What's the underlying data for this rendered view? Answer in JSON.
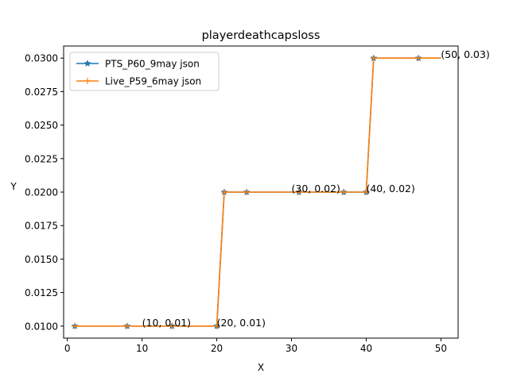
{
  "chart_data": {
    "type": "line",
    "title": "playerdeathcapsloss",
    "xlabel": "X",
    "ylabel": "Y",
    "xlim": [
      -0.5,
      52.3
    ],
    "ylim": [
      0.0091,
      0.0309
    ],
    "xticks": [
      0,
      10,
      20,
      30,
      40,
      50
    ],
    "yticks": [
      0.01,
      0.0125,
      0.015,
      0.0175,
      0.02,
      0.0225,
      0.025,
      0.0275,
      0.03
    ],
    "x_tick_labels": [
      "0",
      "10",
      "20",
      "30",
      "40",
      "50"
    ],
    "y_tick_labels": [
      "0.0100",
      "0.0125",
      "0.0150",
      "0.0175",
      "0.0200",
      "0.0225",
      "0.0250",
      "0.0275",
      "0.0300"
    ],
    "grid": false,
    "legend_position": "top-left",
    "series": [
      {
        "name": "PTS_P60_9may json",
        "color": "#1f77b4",
        "marker": "star",
        "x": [
          1,
          20,
          21,
          40,
          41,
          50
        ],
        "y": [
          0.01,
          0.01,
          0.02,
          0.02,
          0.03,
          0.03
        ],
        "marker_x": [
          1,
          8,
          14,
          20,
          21,
          24,
          31,
          37,
          40,
          41,
          47
        ],
        "marker_y": [
          0.01,
          0.01,
          0.01,
          0.01,
          0.02,
          0.02,
          0.02,
          0.02,
          0.02,
          0.03,
          0.03
        ]
      },
      {
        "name": "Live_P59_6may json",
        "color": "#ff7f0e",
        "marker": "plus",
        "x": [
          1,
          20,
          21,
          40,
          41,
          50
        ],
        "y": [
          0.01,
          0.01,
          0.02,
          0.02,
          0.03,
          0.03
        ],
        "marker_x": [
          1,
          8,
          14,
          20,
          21,
          24,
          31,
          37,
          40,
          41,
          47
        ],
        "marker_y": [
          0.01,
          0.01,
          0.01,
          0.01,
          0.02,
          0.02,
          0.02,
          0.02,
          0.02,
          0.03,
          0.03
        ]
      }
    ],
    "annotations": [
      {
        "text": "(10, 0.01)",
        "x": 10,
        "y": 0.01
      },
      {
        "text": "(20, 0.01)",
        "x": 20,
        "y": 0.01
      },
      {
        "text": "(30, 0.02)",
        "x": 30,
        "y": 0.02
      },
      {
        "text": "(40, 0.02)",
        "x": 40,
        "y": 0.02
      },
      {
        "text": "(50, 0.03)",
        "x": 50,
        "y": 0.03
      }
    ]
  }
}
